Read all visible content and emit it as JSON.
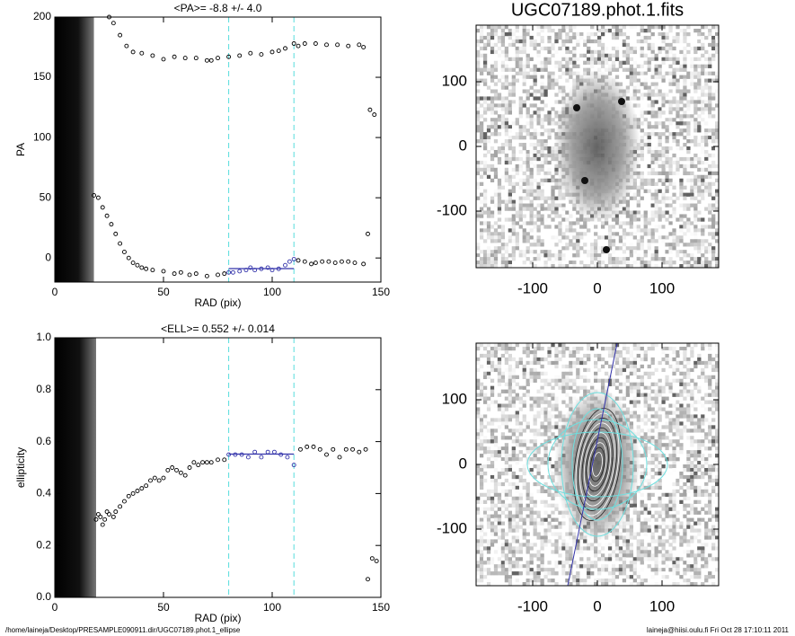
{
  "chart_data": [
    {
      "type": "scatter",
      "title": "<PA>=  -8.8 +/-   4.0",
      "x_label": "RAD (pix)",
      "y_label": "PA",
      "xlim": [
        0,
        150
      ],
      "ylim": [
        -20,
        200
      ],
      "xticks": [
        0,
        50,
        100,
        150
      ],
      "yticks": [
        0,
        50,
        100,
        150,
        200
      ],
      "vlines": [
        80,
        110
      ],
      "fit_value": -8.8,
      "color": "#000000",
      "fit_color": "#3333aa",
      "vline_color": "#55dddd",
      "x": [
        18,
        20,
        22,
        24,
        26,
        28,
        30,
        32,
        34,
        36,
        38,
        40,
        42,
        45,
        50,
        55,
        58,
        62,
        65,
        70,
        75,
        78,
        80,
        82,
        85,
        88,
        90,
        92,
        95,
        98,
        100,
        103,
        106,
        108,
        110,
        112,
        115,
        118,
        120,
        123,
        126,
        129,
        132,
        135,
        138,
        142,
        144,
        25,
        27,
        30,
        33,
        36,
        40,
        45,
        50,
        55,
        60,
        65,
        70,
        72,
        75,
        80,
        85,
        90,
        95,
        100,
        103,
        106,
        110,
        112,
        115,
        120,
        125,
        130,
        135,
        140,
        142,
        145,
        147
      ],
      "values": [
        52,
        50,
        42,
        35,
        28,
        20,
        12,
        5,
        0,
        -4,
        -6,
        -8,
        -9,
        -10,
        -11,
        -13,
        -12,
        -14,
        -13,
        -15,
        -14,
        -13,
        -12,
        -12,
        -11,
        -10,
        -8,
        -10,
        -9,
        -8,
        -10,
        -9,
        -6,
        -3,
        -1,
        -2,
        -3,
        -5,
        -4,
        -3,
        -3,
        -4,
        -3,
        -3,
        -4,
        -5,
        20,
        200,
        195,
        185,
        176,
        171,
        170,
        168,
        165,
        167,
        166,
        166,
        164,
        164,
        166,
        167,
        168,
        170,
        169,
        171,
        172,
        174,
        178,
        176,
        178,
        178,
        177,
        177,
        176,
        177,
        175,
        123,
        119
      ]
    },
    {
      "type": "scatter",
      "title": "<ELL>= 0.552 +/-  0.014",
      "x_label": "RAD (pix)",
      "y_label": "ellipticity",
      "xlim": [
        0,
        150
      ],
      "ylim": [
        0,
        1
      ],
      "xticks": [
        0,
        50,
        100,
        150
      ],
      "yticks": [
        {
          "value": 0,
          "label": "0.0"
        },
        0.2,
        0.4,
        0.6,
        0.8,
        {
          "value": 1,
          "label": "1.0"
        }
      ],
      "vlines": [
        80,
        110
      ],
      "fit_value": 0.552,
      "color": "#000000",
      "fit_color": "#3333aa",
      "vline_color": "#55dddd",
      "x": [
        19,
        20,
        21,
        22,
        23,
        24,
        25,
        27,
        28,
        30,
        32,
        34,
        36,
        38,
        40,
        42,
        44,
        46,
        48,
        50,
        52,
        54,
        56,
        58,
        60,
        62,
        64,
        66,
        68,
        70,
        72,
        75,
        78,
        80,
        83,
        86,
        89,
        92,
        95,
        98,
        101,
        104,
        107,
        110,
        113,
        116,
        119,
        122,
        125,
        128,
        131,
        134,
        137,
        140,
        143,
        144,
        146,
        148
      ],
      "values": [
        0.3,
        0.32,
        0.31,
        0.28,
        0.3,
        0.33,
        0.32,
        0.31,
        0.33,
        0.35,
        0.37,
        0.39,
        0.4,
        0.41,
        0.42,
        0.43,
        0.45,
        0.46,
        0.45,
        0.46,
        0.49,
        0.5,
        0.49,
        0.48,
        0.47,
        0.5,
        0.52,
        0.51,
        0.52,
        0.52,
        0.52,
        0.53,
        0.53,
        0.55,
        0.55,
        0.55,
        0.54,
        0.56,
        0.54,
        0.56,
        0.56,
        0.55,
        0.54,
        0.51,
        0.57,
        0.58,
        0.58,
        0.57,
        0.55,
        0.57,
        0.54,
        0.57,
        0.57,
        0.56,
        0.57,
        0.07,
        0.15,
        0.14
      ]
    },
    {
      "type": "image",
      "title": "UGC07189.phot.1.fits",
      "xlim": [
        -187.5,
        187.5
      ],
      "ylim": [
        -187.5,
        187.5
      ],
      "xticks": [
        -100,
        0,
        100
      ],
      "yticks": [
        -100,
        0,
        100
      ],
      "contours": false
    },
    {
      "type": "image",
      "xlim": [
        -187.5,
        187.5
      ],
      "ylim": [
        -187.5,
        187.5
      ],
      "xticks": [
        -100,
        0,
        100
      ],
      "yticks": [
        -100,
        0,
        100
      ],
      "contours": true
    }
  ],
  "footer": {
    "left": "/home/laineja/Desktop/PRESAMPLE090911.dir/UGC07189.phot.1_ellipse",
    "right": "laineja@hiisi.oulu.fi  Fri Oct 28 17:10:11 2011"
  }
}
